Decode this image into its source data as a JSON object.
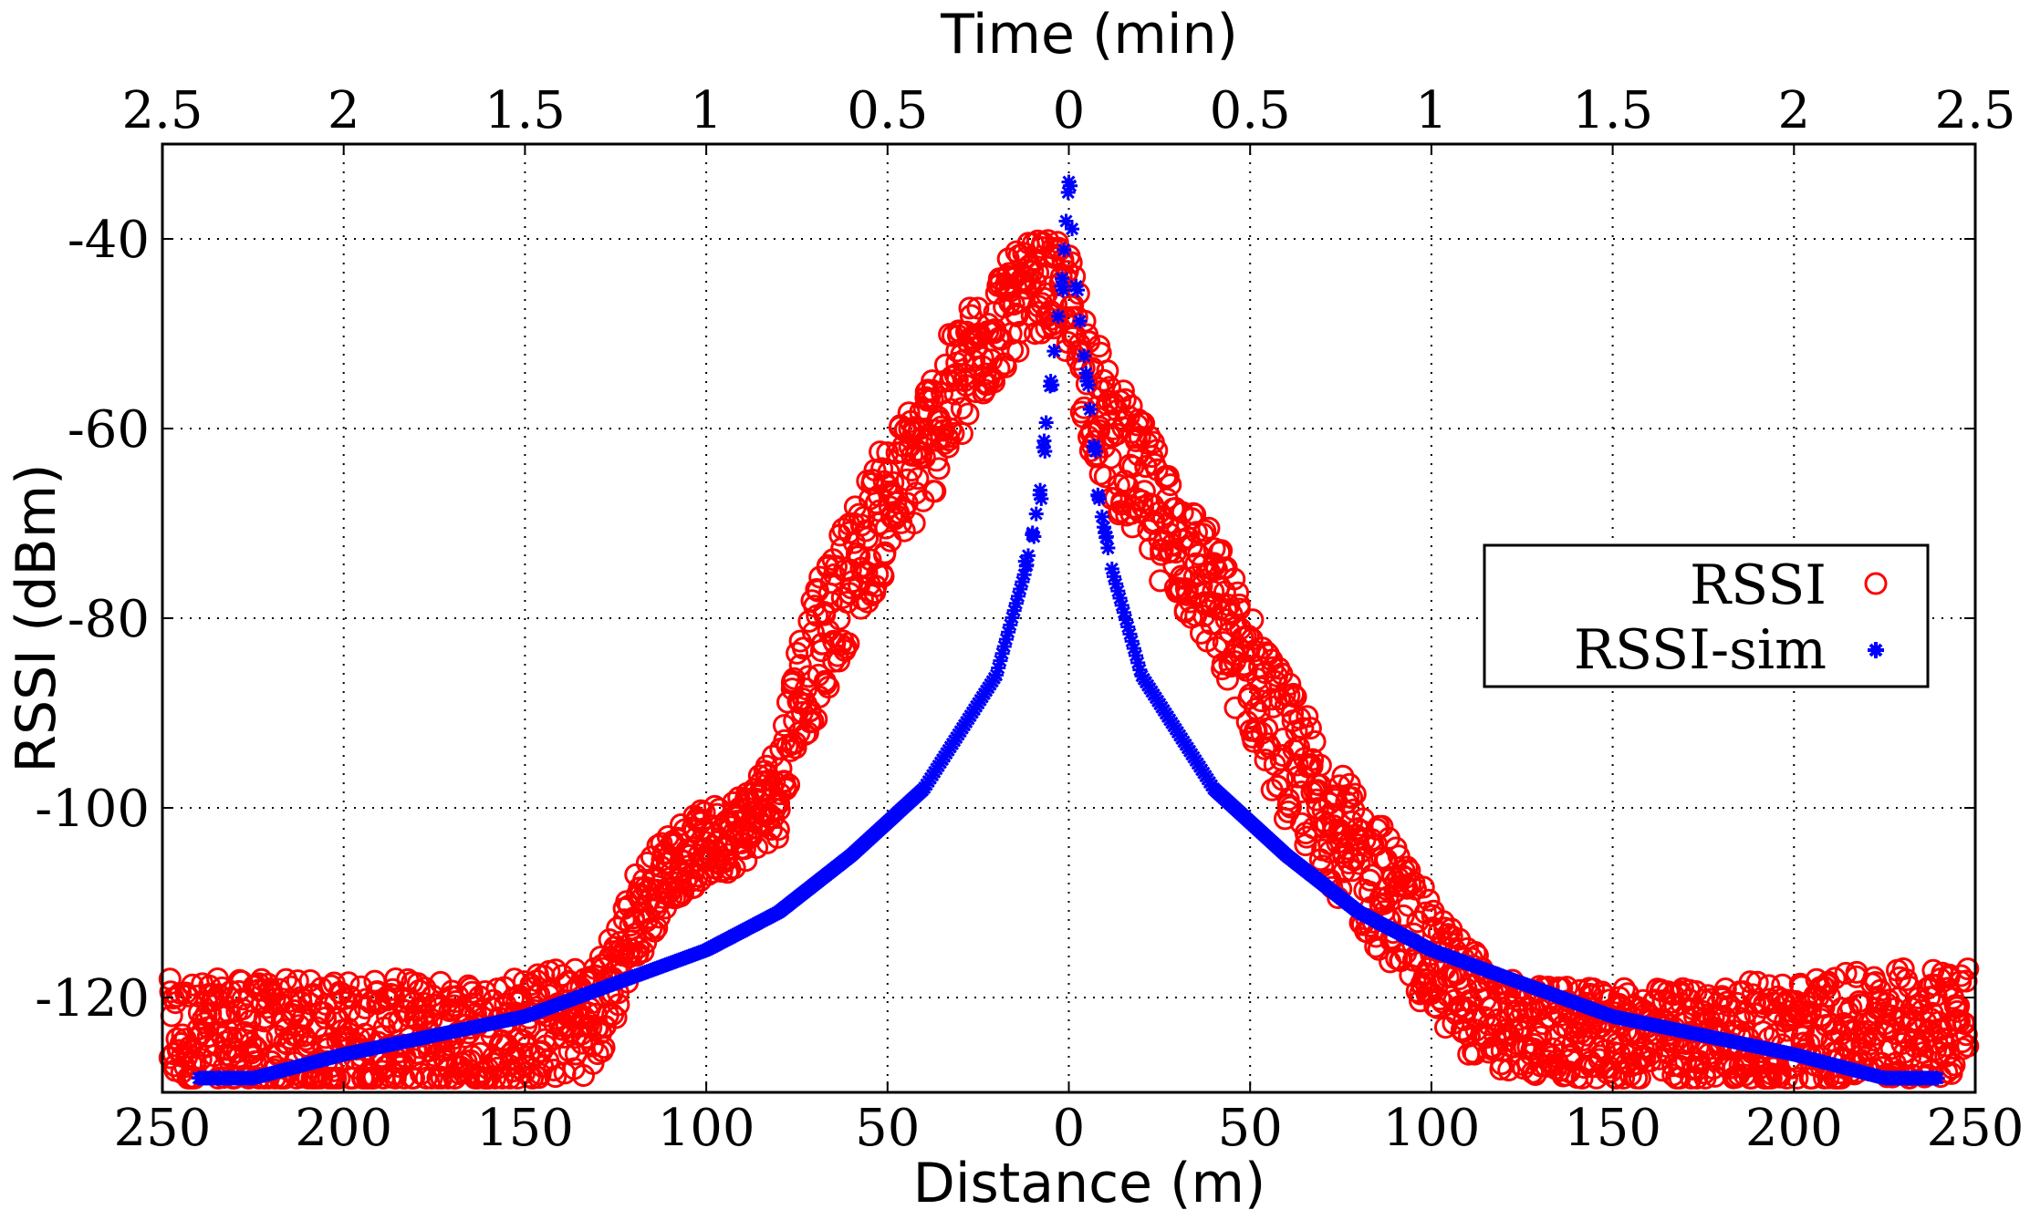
{
  "chart_data": {
    "type": "scatter",
    "title": "",
    "top_axis": {
      "label": "Time (min)",
      "tick_labels": [
        "2.5",
        "2",
        "1.5",
        "1",
        "0.5",
        "0",
        "0.5",
        "1",
        "1.5",
        "2",
        "2.5"
      ]
    },
    "bottom_axis": {
      "label": "Distance (m)",
      "tick_labels": [
        "250",
        "200",
        "150",
        "100",
        "50",
        "0",
        "50",
        "100",
        "150",
        "200",
        "250"
      ]
    },
    "xlim": [
      -250,
      250
    ],
    "ylabel": "RSSI (dBm)",
    "ylim": [
      -130,
      -30
    ],
    "yticks": [
      -120,
      -100,
      -80,
      -60,
      -40
    ],
    "ytick_labels": [
      "-120",
      "-100",
      "-80",
      "-60",
      "-40"
    ],
    "grid": true,
    "legend_position": "center-right",
    "series": [
      {
        "name": "RSSI",
        "marker": "circle-open",
        "color": "#ff0000",
        "envelope": {
          "x": [
            -250,
            -200,
            -160,
            -130,
            -120,
            -110,
            -100,
            -90,
            -80,
            -75,
            -70,
            -60,
            -50,
            -40,
            -30,
            -20,
            -10,
            -5,
            0,
            5,
            10,
            20,
            30,
            40,
            50,
            60,
            70,
            80,
            90,
            100,
            110,
            120,
            140,
            160,
            200,
            250
          ],
          "y": [
            -124,
            -124,
            -124,
            -122,
            -112,
            -106,
            -104,
            -102,
            -98,
            -88,
            -84,
            -75,
            -68,
            -62,
            -55,
            -49,
            -45,
            -45,
            -47,
            -54,
            -60,
            -66,
            -72,
            -78,
            -86,
            -94,
            -100,
            -106,
            -110,
            -116,
            -120,
            -123,
            -124,
            -124,
            -124,
            -122
          ],
          "spread": [
            6,
            6,
            6,
            6,
            5,
            4,
            4,
            4,
            5,
            6,
            7,
            7,
            7,
            7,
            7,
            6,
            5,
            5,
            6,
            7,
            7,
            7,
            7,
            7,
            7,
            8,
            7,
            7,
            7,
            6,
            6,
            5,
            5,
            5,
            6,
            6
          ]
        }
      },
      {
        "name": "RSSI-sim",
        "marker": "asterisk",
        "color": "#0000ff",
        "model": {
          "points": [
            [
              0,
              -34
            ],
            [
              2,
              -45
            ],
            [
              5,
              -55
            ],
            [
              7,
              -62
            ],
            [
              8,
              -67
            ],
            [
              10,
              -71
            ],
            [
              12,
              -75
            ],
            [
              20,
              -86
            ],
            [
              40,
              -98
            ],
            [
              60,
              -105
            ],
            [
              80,
              -111
            ],
            [
              100,
              -115
            ],
            [
              150,
              -122
            ],
            [
              200,
              -126
            ],
            [
              240,
              -130
            ]
          ]
        }
      }
    ]
  }
}
